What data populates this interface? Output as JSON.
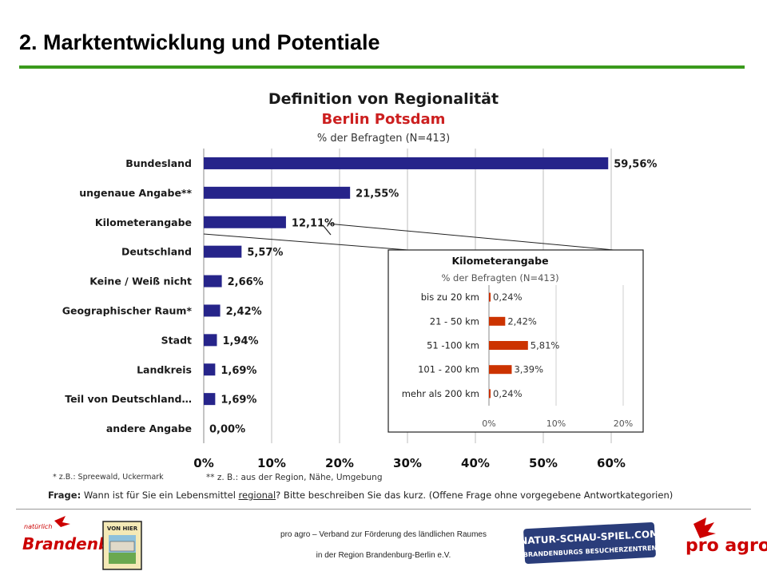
{
  "slide": {
    "title": "2. Marktentwicklung und Potentiale",
    "accent_color": "#3a9a1c"
  },
  "chart_data": [
    {
      "type": "bar",
      "orientation": "horizontal",
      "title": "Definition von Regionalität",
      "subtitle": "Berlin Potsdam",
      "subtitle2": "% der Befragten (N=413)",
      "categories": [
        "Bundesland",
        "ungenaue Angabe**",
        "Kilometerangabe",
        "Deutschland",
        "Keine / Weiß nicht",
        "Geographischer Raum*",
        "Stadt",
        "Landkreis",
        "Teil von Deutschland…",
        "andere Angabe"
      ],
      "values": [
        59.56,
        21.55,
        12.11,
        5.57,
        2.66,
        2.42,
        1.94,
        1.69,
        1.69,
        0.0
      ],
      "value_labels": [
        "59,56%",
        "21,55%",
        "12,11%",
        "5,57%",
        "2,66%",
        "2,42%",
        "1,94%",
        "1,69%",
        "1,69%",
        "0,00%"
      ],
      "xlim": [
        0,
        60
      ],
      "xticks": [
        "0%",
        "10%",
        "20%",
        "30%",
        "40%",
        "50%",
        "60%"
      ],
      "grid": true,
      "bar_color": "#26248a"
    },
    {
      "type": "bar",
      "orientation": "horizontal",
      "title": "Kilometerangabe",
      "subtitle": "% der Befragten (N=413)",
      "categories": [
        "bis zu 20 km",
        "21 - 50 km",
        "51 -100 km",
        "101 - 200 km",
        "mehr als 200 km"
      ],
      "values": [
        0.24,
        2.42,
        5.81,
        3.39,
        0.24
      ],
      "value_labels": [
        "0,24%",
        "2,42%",
        "5,81%",
        "3,39%",
        "0,24%"
      ],
      "xlim": [
        0,
        20
      ],
      "xticks": [
        "0%",
        "10%",
        "20%"
      ],
      "grid": true,
      "bar_color": "#cc3300"
    }
  ],
  "footnotes": {
    "geo": "* z.B.: Spreewald, Uckermark",
    "vague": "** z. B.: aus der Region, Nähe, Umgebung"
  },
  "question": {
    "label": "Frage:",
    "text_before": " Wann ist für Sie ein Lebensmittel ",
    "underlined": "regional",
    "text_after": "? Bitte beschreiben Sie das kurz. (Offene Frage ohne vorgegebene Antwortkategorien)"
  },
  "footer": {
    "line1": "pro agro – Verband zur Förderung des ländlichen Raumes",
    "line2": "in der Region Brandenburg-Berlin e.V.",
    "logo_left": "Brandenburg",
    "logo_left_small": "natürlich",
    "logo_vonhier": "VON HIER",
    "logo_nsp_1": "NATUR-SCHAU-SPIEL.COM",
    "logo_nsp_2": "BRANDENBURGS BESUCHERZENTREN",
    "logo_proagro": "pro agro"
  }
}
